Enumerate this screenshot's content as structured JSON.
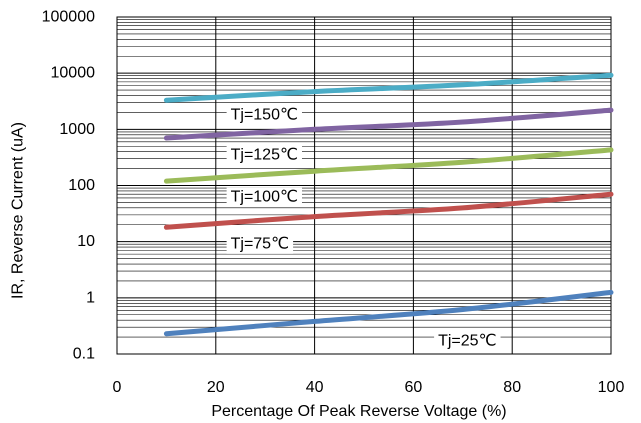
{
  "chart_data": {
    "type": "line",
    "title": "",
    "xlabel": "Percentage Of Peak Reverse Voltage (%)",
    "ylabel": "IR, Reverse Current (uA)",
    "xlim": [
      0,
      100
    ],
    "ylim": [
      0.1,
      100000
    ],
    "yscale": "log",
    "grid": true,
    "legend": "none",
    "x_ticks": [
      0,
      20,
      40,
      60,
      80,
      100
    ],
    "x_tick_labels": [
      "0",
      "20",
      "40",
      "60",
      "80",
      "100"
    ],
    "y_ticks": [
      0.1,
      1,
      10,
      100,
      1000,
      10000,
      100000
    ],
    "y_tick_labels": [
      "0.1",
      "1",
      "10",
      "100",
      "1000",
      "10000",
      "100000"
    ],
    "series": [
      {
        "name": "Tj=150℃",
        "color": "#4bacc6",
        "x": [
          10,
          40,
          70,
          100
        ],
        "y": [
          3300,
          4700,
          6200,
          9200
        ]
      },
      {
        "name": "Tj=125℃",
        "color": "#8064a2",
        "x": [
          10,
          40,
          70,
          100
        ],
        "y": [
          700,
          1000,
          1350,
          2200
        ]
      },
      {
        "name": "Tj=100℃",
        "color": "#9bbb59",
        "x": [
          10,
          40,
          70,
          100
        ],
        "y": [
          120,
          180,
          260,
          430
        ]
      },
      {
        "name": "Tj=75℃",
        "color": "#c0504d",
        "x": [
          10,
          40,
          70,
          100
        ],
        "y": [
          18,
          28,
          40,
          70
        ]
      },
      {
        "name": "Tj=25℃",
        "color": "#4f81bd",
        "x": [
          10,
          40,
          70,
          100
        ],
        "y": [
          0.23,
          0.38,
          0.62,
          1.25
        ]
      }
    ],
    "annotations": [
      {
        "text": "Tj=150℃",
        "x": 23,
        "y": 1800
      },
      {
        "text": "Tj=125℃",
        "x": 23,
        "y": 350
      },
      {
        "text": "Tj=100℃",
        "x": 23,
        "y": 62
      },
      {
        "text": "Tj=75℃",
        "x": 23,
        "y": 9
      },
      {
        "text": "Tj=25℃",
        "x": 65,
        "y": 0.17
      }
    ]
  }
}
